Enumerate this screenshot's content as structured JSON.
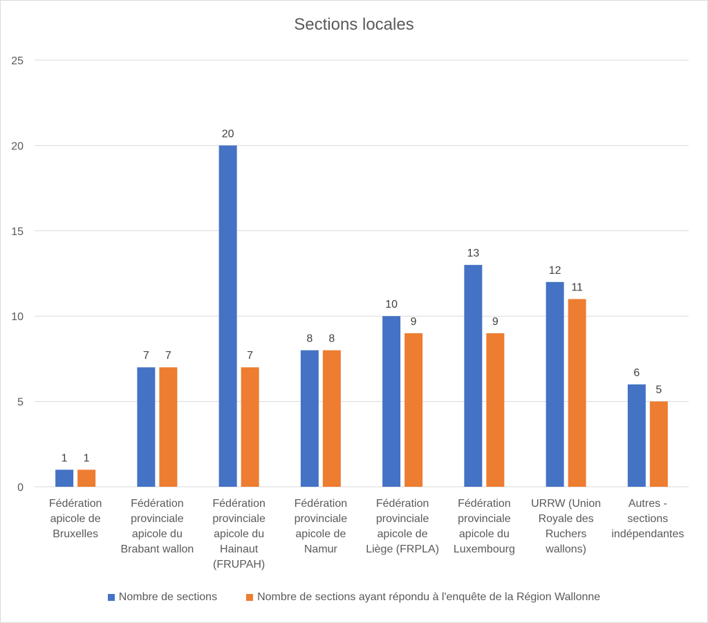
{
  "chart_data": {
    "type": "bar",
    "title": "Sections locales",
    "categories": [
      "Fédération\napicole de\nBruxelles",
      "Fédération\nprovinciale\napicole du\nBrabant wallon",
      "Fédération\nprovinciale\napicole du\nHainaut\n(FRUPAH)",
      "Fédération\nprovinciale\napicole de\nNamur",
      "Fédération\nprovinciale\napicole de\nLiège (FRPLA)",
      "Fédération\nprovinciale\napicole du\nLuxembourg",
      "URRW (Union\nRoyale des\nRuchers\nwallons)",
      "Autres -\nsections\nindépendantes"
    ],
    "series": [
      {
        "name": "Nombre de sections",
        "color": "#4472c4",
        "values": [
          1,
          7,
          20,
          8,
          10,
          13,
          12,
          6
        ]
      },
      {
        "name": "Nombre de sections ayant répondu à l'enquête de la Région Wallonne",
        "color": "#ed7d31",
        "values": [
          1,
          7,
          7,
          8,
          9,
          9,
          11,
          5
        ]
      }
    ],
    "ylim": [
      0,
      25
    ],
    "yticks": [
      0,
      5,
      10,
      15,
      20,
      25
    ],
    "grid": true,
    "legend_position": "bottom",
    "data_labels": true
  }
}
